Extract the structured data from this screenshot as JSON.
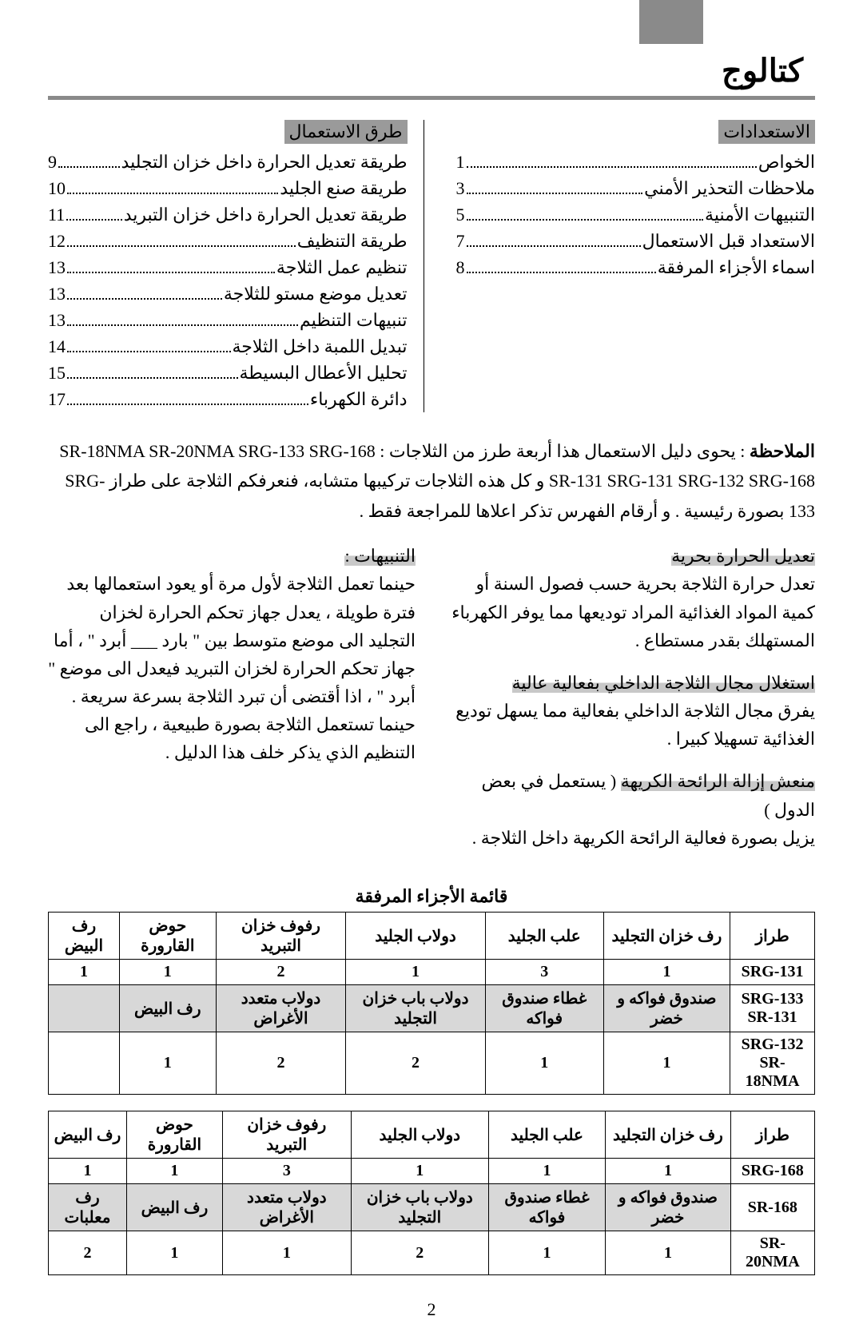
{
  "title": "كتالوج",
  "toc_right": {
    "heading": "الاستعدادات",
    "items": [
      {
        "label": "الخواص",
        "page": "1"
      },
      {
        "label": "ملاحظات التحذير الأمني",
        "page": "3"
      },
      {
        "label": "التنبيهات الأمنية",
        "page": "5"
      },
      {
        "label": "الاستعداد قبل الاستعمال",
        "page": "7"
      },
      {
        "label": "اسماء الأجزاء المرفقة",
        "page": "8"
      }
    ]
  },
  "toc_left": {
    "heading": "طرق الاستعمال",
    "items": [
      {
        "label": "طريقة تعديل الحرارة داخل خزان التجليد",
        "page": "9"
      },
      {
        "label": "طريقة صنع الجليد",
        "page": "10"
      },
      {
        "label": "طريقة تعديل الحرارة داخل خزان التبريد",
        "page": "11"
      },
      {
        "label": "طريقة التنظيف",
        "page": "12"
      },
      {
        "label": "تنظيم عمل الثلاجة",
        "page": "13"
      },
      {
        "label": "تعديل موضع مستو للثلاجة",
        "page": "13"
      },
      {
        "label": "تنبيهات التنظيم",
        "page": "13"
      },
      {
        "label": "تبديل اللمبة داخل الثلاجة",
        "page": "14"
      },
      {
        "label": "تحليل الأعطال البسيطة",
        "page": "15"
      },
      {
        "label": "دائرة الكهرباء",
        "page": "17"
      }
    ]
  },
  "note": {
    "label": "الملاحظة",
    "text1": " : يحوى دليل الاستعمال هذا أربعة طرز من الثلاجات : SR-18NMA SR-20NMA SRG-133 SRG-168",
    "text2": "SR-131 SRG-131 SRG-132 SRG-168 و كل هذه الثلاجات تركيبها متشابه، فنعرفكم الثلاجة على طراز SRG-133 بصورة رئيسية . و أرقام الفهرس تذكر اعلاها للمراجعة فقط ."
  },
  "features_right": [
    {
      "title": "تعديل الحرارة بحرية",
      "body": "تعدل حرارة الثلاجة بحرية حسب فصول السنة أو كمية المواد الغذائية المراد توديعها مما يوفر الكهرباء المستهلك بقدر مستطاع ."
    },
    {
      "title": "استغلال مجال الثلاجة الداخلي بفعالية عالية",
      "body": "يفرق مجال الثلاجة الداخلي بفعالية مما يسهل توديع الغذائية تسهيلا كبيرا ."
    },
    {
      "title": "منعش إزالة الرائحة الكريهة",
      "suffix": " ( يستعمل في بعض الدول )",
      "body": "يزيل بصورة فعالية الرائحة الكريهة داخل الثلاجة ."
    }
  ],
  "features_left": [
    {
      "title": "التنبيهات :",
      "body": "حينما تعمل الثلاجة لأول مرة أو يعود استعمالها بعد فترة طويلة ، يعدل جهاز تحكم الحرارة لخزان التجليد الى موضع متوسط بين \" بارد ___ أبرد \" ، أما جهاز تحكم الحرارة لخزان التبريد فيعدل الى موضع \" أبرد \" ، اذا أقتضى أن تبرد الثلاجة بسرعة سريعة . حينما تستعمل الثلاجة بصورة طبيعية ، راجع الى التنظيم الذي يذكر خلف هذا الدليل ."
    }
  ],
  "parts_title": "قائمة الأجزاء المرفقة",
  "table1": {
    "headers": [
      "طراز",
      "رف خزان التجليد",
      "علب الجليد",
      "دولاب الجليد",
      "رفوف خزان التبريد",
      "حوض القارورة",
      "رف البيض"
    ],
    "row1": [
      "SRG-131",
      "1",
      "3",
      "1",
      "2",
      "1",
      "1"
    ],
    "sub_models": "SRG-133\nSR-131",
    "sub": [
      "صندوق فواكه و خضر",
      "غطاء صندوق فواكه",
      "دولاب باب خزان التجليد",
      "دولاب متعدد الأغراض",
      "رف البيض",
      ""
    ],
    "row2": [
      "SRG-132\nSR-18NMA",
      "1",
      "1",
      "2",
      "2",
      "1",
      ""
    ]
  },
  "table2": {
    "headers": [
      "طراز",
      "رف خزان التجليد",
      "علب الجليد",
      "دولاب الجليد",
      "رفوف خزان التبريد",
      "حوض القارورة",
      "رف البيض"
    ],
    "row1": [
      "SRG-168",
      "1",
      "1",
      "1",
      "3",
      "1",
      "1"
    ],
    "sub_model": "SR-168",
    "sub": [
      "صندوق فواكه و خضر",
      "غطاء صندوق فواكه",
      "دولاب باب خزان التجليد",
      "دولاب متعدد الأغراض",
      "رف البيض",
      "رف معلبات"
    ],
    "row2": [
      "SR-20NMA",
      "1",
      "1",
      "2",
      "1",
      "1",
      "2"
    ]
  },
  "page_number": "2"
}
